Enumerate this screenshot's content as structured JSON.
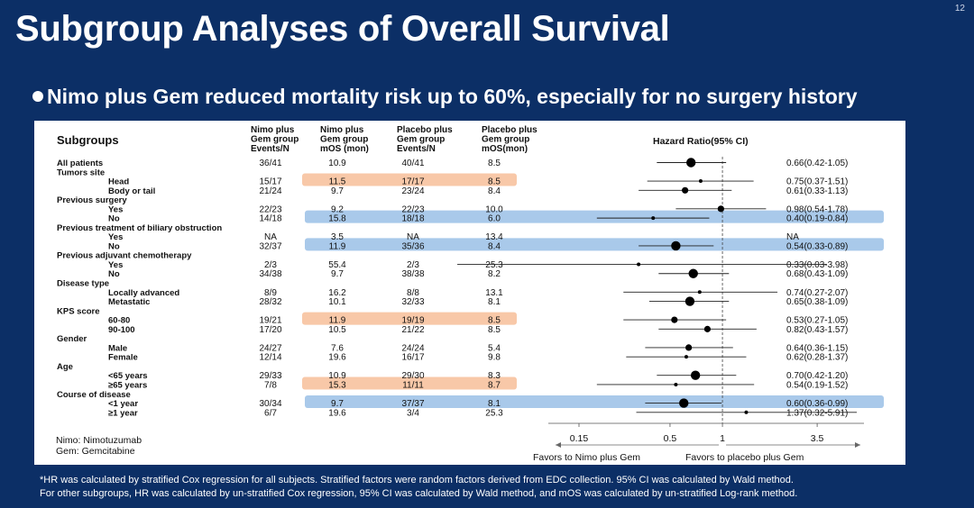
{
  "slide": {
    "title": "Subgroup Analyses of Overall Survival",
    "page_number": "12",
    "bullet": "Nimo plus Gem reduced mortality risk up to 60%, especially for no surgery history",
    "footnote_lines": [
      "*HR was calculated by stratified Cox regression for all subjects. Stratified factors were random factors derived from EDC collection. 95% CI was calculated by Wald method.",
      "For other subgroups, HR was calculated by un-stratified Cox regression, 95% CI was calculated by Wald method, and mOS was calculated by un-stratified Log-rank method."
    ],
    "abbreviations": [
      "Nimo: Nimotuzumab",
      "Gem: Gemcitabine"
    ]
  },
  "colors": {
    "background": "#0c2f66",
    "highlight_orange": "#f8c8a8",
    "highlight_blue": "#a9c9ea",
    "ink": "#111111"
  },
  "chart_data": {
    "type": "forest",
    "title": "Hazard Ratio(95% CI)",
    "columns": {
      "subgroups": "Subgroups",
      "nimo_events": [
        "Nimo plus",
        "Gem group",
        "Events/N"
      ],
      "nimo_mos": [
        "Nimo plus",
        "Gem group",
        "mOS (mon)"
      ],
      "placebo_events": [
        "Placebo plus",
        "Gem group",
        "Events/N"
      ],
      "placebo_mos": [
        "Placebo plus",
        "Gem group",
        "mOS(mon)"
      ]
    },
    "x_scale": "log",
    "reference_line": 1,
    "xticks": [
      "0.15",
      "0.5",
      "1",
      "3.5"
    ],
    "xtick_values": [
      0.15,
      0.5,
      1,
      3.5
    ],
    "xlim": [
      0.1,
      6.5
    ],
    "favors_left": "Favors to Nimo plus Gem",
    "favors_right": "Favors to placebo plus Gem",
    "rows": [
      {
        "label": "All patients",
        "level": 0,
        "nimo_events": "36/41",
        "nimo_mos": "10.9",
        "placebo_events": "40/41",
        "placebo_mos": "8.5",
        "hr": 0.66,
        "lo": 0.42,
        "hi": 1.05,
        "hr_text": "0.66(0.42-1.05)",
        "marker": 2
      },
      {
        "label": "Tumors site",
        "level": 0
      },
      {
        "label": "Head",
        "level": 1,
        "nimo_events": "15/17",
        "nimo_mos": "11.5",
        "placebo_events": "17/17",
        "placebo_mos": "8.5",
        "hr": 0.75,
        "lo": 0.37,
        "hi": 1.51,
        "hr_text": "0.75(0.37-1.51)",
        "highlight": "orange",
        "marker": 0
      },
      {
        "label": "Body or tail",
        "level": 1,
        "nimo_events": "21/24",
        "nimo_mos": "9.7",
        "placebo_events": "23/24",
        "placebo_mos": "8.4",
        "hr": 0.61,
        "lo": 0.33,
        "hi": 1.13,
        "hr_text": "0.61(0.33-1.13)",
        "marker": 1
      },
      {
        "label": "Previous surgery",
        "level": 0
      },
      {
        "label": "Yes",
        "level": 1,
        "nimo_events": "22/23",
        "nimo_mos": "9.2",
        "placebo_events": "22/23",
        "placebo_mos": "10.0",
        "hr": 0.98,
        "lo": 0.54,
        "hi": 1.78,
        "hr_text": "0.98(0.54-1.78)",
        "marker": 1
      },
      {
        "label": "No",
        "level": 1,
        "nimo_events": "14/18",
        "nimo_mos": "15.8",
        "placebo_events": "18/18",
        "placebo_mos": "6.0",
        "hr": 0.4,
        "lo": 0.19,
        "hi": 0.84,
        "hr_text": "0.40(0.19-0.84)",
        "highlight": "blue",
        "marker": 0
      },
      {
        "label": "Previous treatment of biliary obstruction",
        "level": 0
      },
      {
        "label": "Yes",
        "level": 1,
        "nimo_events": "NA",
        "nimo_mos": "3.5",
        "placebo_events": "NA",
        "placebo_mos": "13.4",
        "hr_text": "NA"
      },
      {
        "label": "No",
        "level": 1,
        "nimo_events": "32/37",
        "nimo_mos": "11.9",
        "placebo_events": "35/36",
        "placebo_mos": "8.4",
        "hr": 0.54,
        "lo": 0.33,
        "hi": 0.89,
        "hr_text": "0.54(0.33-0.89)",
        "highlight": "blue",
        "marker": 2
      },
      {
        "label": "Previous adjuvant chemotherapy",
        "level": 0
      },
      {
        "label": "Yes",
        "level": 1,
        "nimo_events": "2/3",
        "nimo_mos": "55.4",
        "placebo_events": "2/3",
        "placebo_mos": "25.3",
        "hr": 0.33,
        "lo": 0.03,
        "hi": 3.98,
        "hr_text": "0.33(0.03-3.98)",
        "marker": 0
      },
      {
        "label": "No",
        "level": 1,
        "nimo_events": "34/38",
        "nimo_mos": "9.7",
        "placebo_events": "38/38",
        "placebo_mos": "8.2",
        "hr": 0.68,
        "lo": 0.43,
        "hi": 1.09,
        "hr_text": "0.68(0.43-1.09)",
        "marker": 2
      },
      {
        "label": "Disease type",
        "level": 0
      },
      {
        "label": "Locally advanced",
        "level": 1,
        "nimo_events": "8/9",
        "nimo_mos": "16.2",
        "placebo_events": "8/8",
        "placebo_mos": "13.1",
        "hr": 0.74,
        "lo": 0.27,
        "hi": 2.07,
        "hr_text": "0.74(0.27-2.07)",
        "marker": 0
      },
      {
        "label": "Metastatic",
        "level": 1,
        "nimo_events": "28/32",
        "nimo_mos": "10.1",
        "placebo_events": "32/33",
        "placebo_mos": "8.1",
        "hr": 0.65,
        "lo": 0.38,
        "hi": 1.09,
        "hr_text": "0.65(0.38-1.09)",
        "marker": 2
      },
      {
        "label": "KPS score",
        "level": 0
      },
      {
        "label": "60-80",
        "level": 1,
        "nimo_events": "19/21",
        "nimo_mos": "11.9",
        "placebo_events": "19/19",
        "placebo_mos": "8.5",
        "hr": 0.53,
        "lo": 0.27,
        "hi": 1.05,
        "hr_text": "0.53(0.27-1.05)",
        "highlight": "orange",
        "marker": 1
      },
      {
        "label": "90-100",
        "level": 1,
        "nimo_events": "17/20",
        "nimo_mos": "10.5",
        "placebo_events": "21/22",
        "placebo_mos": "8.5",
        "hr": 0.82,
        "lo": 0.43,
        "hi": 1.57,
        "hr_text": "0.82(0.43-1.57)",
        "marker": 1
      },
      {
        "label": "Gender",
        "level": 0
      },
      {
        "label": "Male",
        "level": 1,
        "nimo_events": "24/27",
        "nimo_mos": "7.6",
        "placebo_events": "24/24",
        "placebo_mos": "5.4",
        "hr": 0.64,
        "lo": 0.36,
        "hi": 1.15,
        "hr_text": "0.64(0.36-1.15)",
        "marker": 1
      },
      {
        "label": "Female",
        "level": 1,
        "nimo_events": "12/14",
        "nimo_mos": "19.6",
        "placebo_events": "16/17",
        "placebo_mos": "9.8",
        "hr": 0.62,
        "lo": 0.28,
        "hi": 1.37,
        "hr_text": "0.62(0.28-1.37)",
        "marker": 0
      },
      {
        "label": "Age",
        "level": 0
      },
      {
        "label": "<65 years",
        "level": 1,
        "nimo_events": "29/33",
        "nimo_mos": "10.9",
        "placebo_events": "29/30",
        "placebo_mos": "8.3",
        "hr": 0.7,
        "lo": 0.42,
        "hi": 1.2,
        "hr_text": "0.70(0.42-1.20)",
        "marker": 2
      },
      {
        "label": "≥65 years",
        "level": 1,
        "nimo_events": "7/8",
        "nimo_mos": "15.3",
        "placebo_events": "11/11",
        "placebo_mos": "8.7",
        "hr": 0.54,
        "lo": 0.19,
        "hi": 1.52,
        "hr_text": "0.54(0.19-1.52)",
        "highlight": "orange",
        "marker": 0
      },
      {
        "label": "Course of disease",
        "level": 0
      },
      {
        "label": "<1 year",
        "level": 1,
        "nimo_events": "30/34",
        "nimo_mos": "9.7",
        "placebo_events": "37/37",
        "placebo_mos": "8.1",
        "hr": 0.6,
        "lo": 0.36,
        "hi": 0.99,
        "hr_text": "0.60(0.36-0.99)",
        "highlight": "blue",
        "marker": 2
      },
      {
        "label": "≥1 year",
        "level": 1,
        "nimo_events": "6/7",
        "nimo_mos": "19.6",
        "placebo_events": "3/4",
        "placebo_mos": "25.3",
        "hr": 1.37,
        "lo": 0.32,
        "hi": 5.91,
        "hr_text": "1.37(0.32-5.91)",
        "marker": 0
      }
    ]
  }
}
